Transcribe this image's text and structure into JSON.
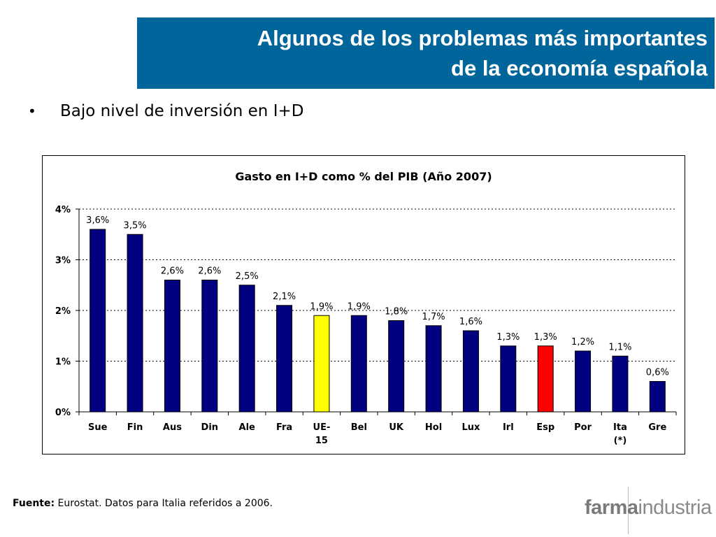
{
  "slide": {
    "title_line1": "Algunos de los problemas más importantes",
    "title_line2": "de la economía española",
    "bullet_text": "Bajo nivel de inversión en I+D",
    "bullet_symbol": "•",
    "source_label": "Fuente:",
    "source_text": " Eurostat. Datos para Italia referidos a 2006.",
    "logo_part1": "farma",
    "logo_part2": "industria",
    "title_bg_color": "#00659A"
  },
  "chart_data": {
    "type": "bar",
    "title": "Gasto en I+D como % del PIB (Año 2007)",
    "xlabel": "",
    "ylabel": "",
    "ylim": [
      0,
      4
    ],
    "yticks": [
      0,
      1,
      2,
      3,
      4
    ],
    "ytick_labels": [
      "0%",
      "1%",
      "2%",
      "3%",
      "4%"
    ],
    "grid": "dotted-horizontal",
    "categories": [
      "Sue",
      "Fin",
      "Aus",
      "Din",
      "Ale",
      "Fra",
      "UE-15",
      "Bel",
      "UK",
      "Hol",
      "Lux",
      "Irl",
      "Esp",
      "Por",
      "Ita (*)",
      "Gre"
    ],
    "category_lines": [
      [
        "Sue"
      ],
      [
        "Fin"
      ],
      [
        "Aus"
      ],
      [
        "Din"
      ],
      [
        "Ale"
      ],
      [
        "Fra"
      ],
      [
        "UE-",
        "15"
      ],
      [
        "Bel"
      ],
      [
        "UK"
      ],
      [
        "Hol"
      ],
      [
        "Lux"
      ],
      [
        "Irl"
      ],
      [
        "Esp"
      ],
      [
        "Por"
      ],
      [
        "Ita",
        "(*)"
      ],
      [
        "Gre"
      ]
    ],
    "values": [
      3.6,
      3.5,
      2.6,
      2.6,
      2.5,
      2.1,
      1.9,
      1.9,
      1.8,
      1.7,
      1.6,
      1.3,
      1.3,
      1.2,
      1.1,
      0.6
    ],
    "value_labels": [
      "3,6%",
      "3,5%",
      "2,6%",
      "2,6%",
      "2,5%",
      "2,1%",
      "1,9%",
      "1,9%",
      "1,8%",
      "1,7%",
      "1,6%",
      "1,3%",
      "1,3%",
      "1,2%",
      "1,1%",
      "0,6%"
    ],
    "bar_colors": [
      "#000080",
      "#000080",
      "#000080",
      "#000080",
      "#000080",
      "#000080",
      "#FFFF00",
      "#000080",
      "#000080",
      "#000080",
      "#000080",
      "#000080",
      "#FF0000",
      "#000080",
      "#000080",
      "#000080"
    ]
  }
}
